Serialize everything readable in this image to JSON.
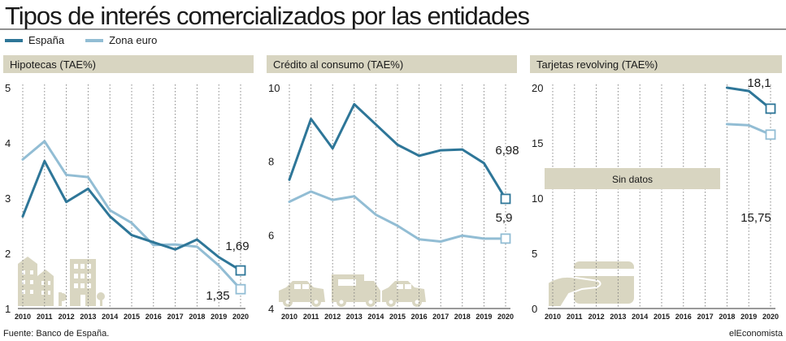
{
  "header": {
    "title": "Tipos de interés comercializados por las entidades"
  },
  "legend": [
    {
      "label": "España",
      "color": "#2e7698"
    },
    {
      "label": "Zona euro",
      "color": "#92bdd4"
    }
  ],
  "colors": {
    "spain": "#2e7698",
    "euro": "#92bdd4",
    "header_band": "#d8d5c1",
    "grid": "#7b7b7b",
    "illustration": "#d9d6c1"
  },
  "footer": {
    "source": "Fuente: Banco de España.",
    "brand": "elEconomista"
  },
  "chart_data": [
    {
      "type": "line",
      "title": "Hipotecas (TAE%)",
      "x": [
        "2010",
        "2011",
        "2012",
        "2013",
        "2014",
        "2015",
        "2016",
        "2017",
        "2018",
        "2019",
        "2020"
      ],
      "ylim": [
        1,
        5
      ],
      "yticks": [
        1,
        2,
        3,
        4,
        5
      ],
      "ytick_labels": [
        "1",
        "2",
        "3",
        "4",
        "5"
      ],
      "series": [
        {
          "name": "España",
          "values": [
            2.67,
            3.67,
            2.93,
            3.17,
            2.67,
            2.33,
            2.2,
            2.07,
            2.25,
            1.93,
            1.69
          ]
        },
        {
          "name": "Zona euro",
          "values": [
            3.7,
            4.03,
            3.42,
            3.38,
            2.78,
            2.55,
            2.15,
            2.16,
            2.12,
            1.78,
            1.35
          ]
        }
      ],
      "end_labels": {
        "España": "1,69",
        "Zona euro": "1,35"
      }
    },
    {
      "type": "line",
      "title": "Crédito al consumo (TAE%)",
      "x": [
        "2010",
        "2011",
        "2012",
        "2013",
        "2014",
        "2015",
        "2016",
        "2017",
        "2018",
        "2019",
        "2020"
      ],
      "ylim": [
        4,
        10
      ],
      "yticks": [
        4,
        6,
        8,
        10
      ],
      "ytick_labels": [
        "4",
        "6",
        "8",
        "10"
      ],
      "series": [
        {
          "name": "España",
          "values": [
            7.5,
            9.15,
            8.35,
            9.55,
            9.0,
            8.45,
            8.15,
            8.3,
            8.32,
            7.95,
            6.98
          ]
        },
        {
          "name": "Zona euro",
          "values": [
            6.9,
            7.18,
            6.95,
            7.05,
            6.55,
            6.25,
            5.88,
            5.82,
            5.98,
            5.9,
            5.9
          ]
        }
      ],
      "end_labels": {
        "España": "6,98",
        "Zona euro": "5,9"
      }
    },
    {
      "type": "line",
      "title": "Tarjetas revolving (TAE%)",
      "x": [
        "2010",
        "2011",
        "2012",
        "2013",
        "2014",
        "2015",
        "2016",
        "2017",
        "2018",
        "2019",
        "2020"
      ],
      "ylim": [
        0,
        20
      ],
      "yticks": [
        0,
        5,
        10,
        15,
        20
      ],
      "ytick_labels": [
        "0",
        "5",
        "10",
        "15",
        "20"
      ],
      "series": [
        {
          "name": "España",
          "values": [
            null,
            null,
            null,
            null,
            null,
            null,
            null,
            null,
            20.0,
            19.7,
            18.1
          ]
        },
        {
          "name": "Zona euro",
          "values": [
            null,
            null,
            null,
            null,
            null,
            null,
            null,
            null,
            16.7,
            16.6,
            15.75
          ]
        }
      ],
      "end_labels": {
        "España": "18,1",
        "Zona euro": "15,75"
      },
      "annotation": "Sin datos"
    }
  ]
}
